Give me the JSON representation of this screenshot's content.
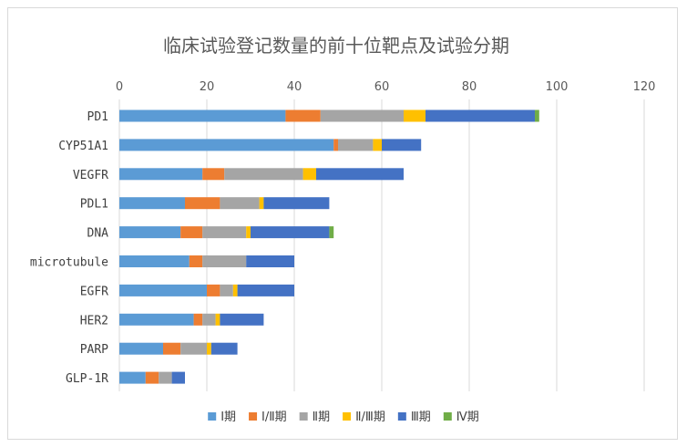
{
  "chart_data": {
    "type": "bar",
    "orientation": "horizontal",
    "stacked": true,
    "title": "临床试验登记数量的前十位靶点及试验分期",
    "categories": [
      "PD1",
      "CYP51A1",
      "VEGFR",
      "PDL1",
      "DNA",
      "microtubule",
      "EGFR",
      "HER2",
      "PARP",
      "GLP-1R"
    ],
    "xlim": [
      0,
      120
    ],
    "xticks": [
      "0",
      "20",
      "40",
      "60",
      "80",
      "100",
      "120"
    ],
    "grid": true,
    "legend_position": "bottom",
    "series": [
      {
        "name": "Ⅰ期",
        "color": "#5B9BD5",
        "values": [
          38,
          49,
          19,
          15,
          14,
          16,
          20,
          17,
          10,
          6
        ]
      },
      {
        "name": "Ⅰ/Ⅱ期",
        "color": "#ED7D31",
        "values": [
          8,
          1,
          5,
          8,
          5,
          3,
          3,
          2,
          4,
          3
        ]
      },
      {
        "name": "Ⅱ期",
        "color": "#A5A5A5",
        "values": [
          19,
          8,
          18,
          9,
          10,
          10,
          3,
          3,
          6,
          3
        ]
      },
      {
        "name": "Ⅱ/Ⅲ期",
        "color": "#FFC000",
        "values": [
          5,
          2,
          3,
          1,
          1,
          0,
          1,
          1,
          1,
          0
        ]
      },
      {
        "name": "Ⅲ期",
        "color": "#4472C4",
        "values": [
          25,
          9,
          20,
          15,
          18,
          11,
          13,
          10,
          6,
          3
        ]
      },
      {
        "name": "Ⅳ期",
        "color": "#70AD47",
        "values": [
          1,
          0,
          0,
          0,
          1,
          0,
          0,
          0,
          0,
          0
        ]
      }
    ]
  }
}
